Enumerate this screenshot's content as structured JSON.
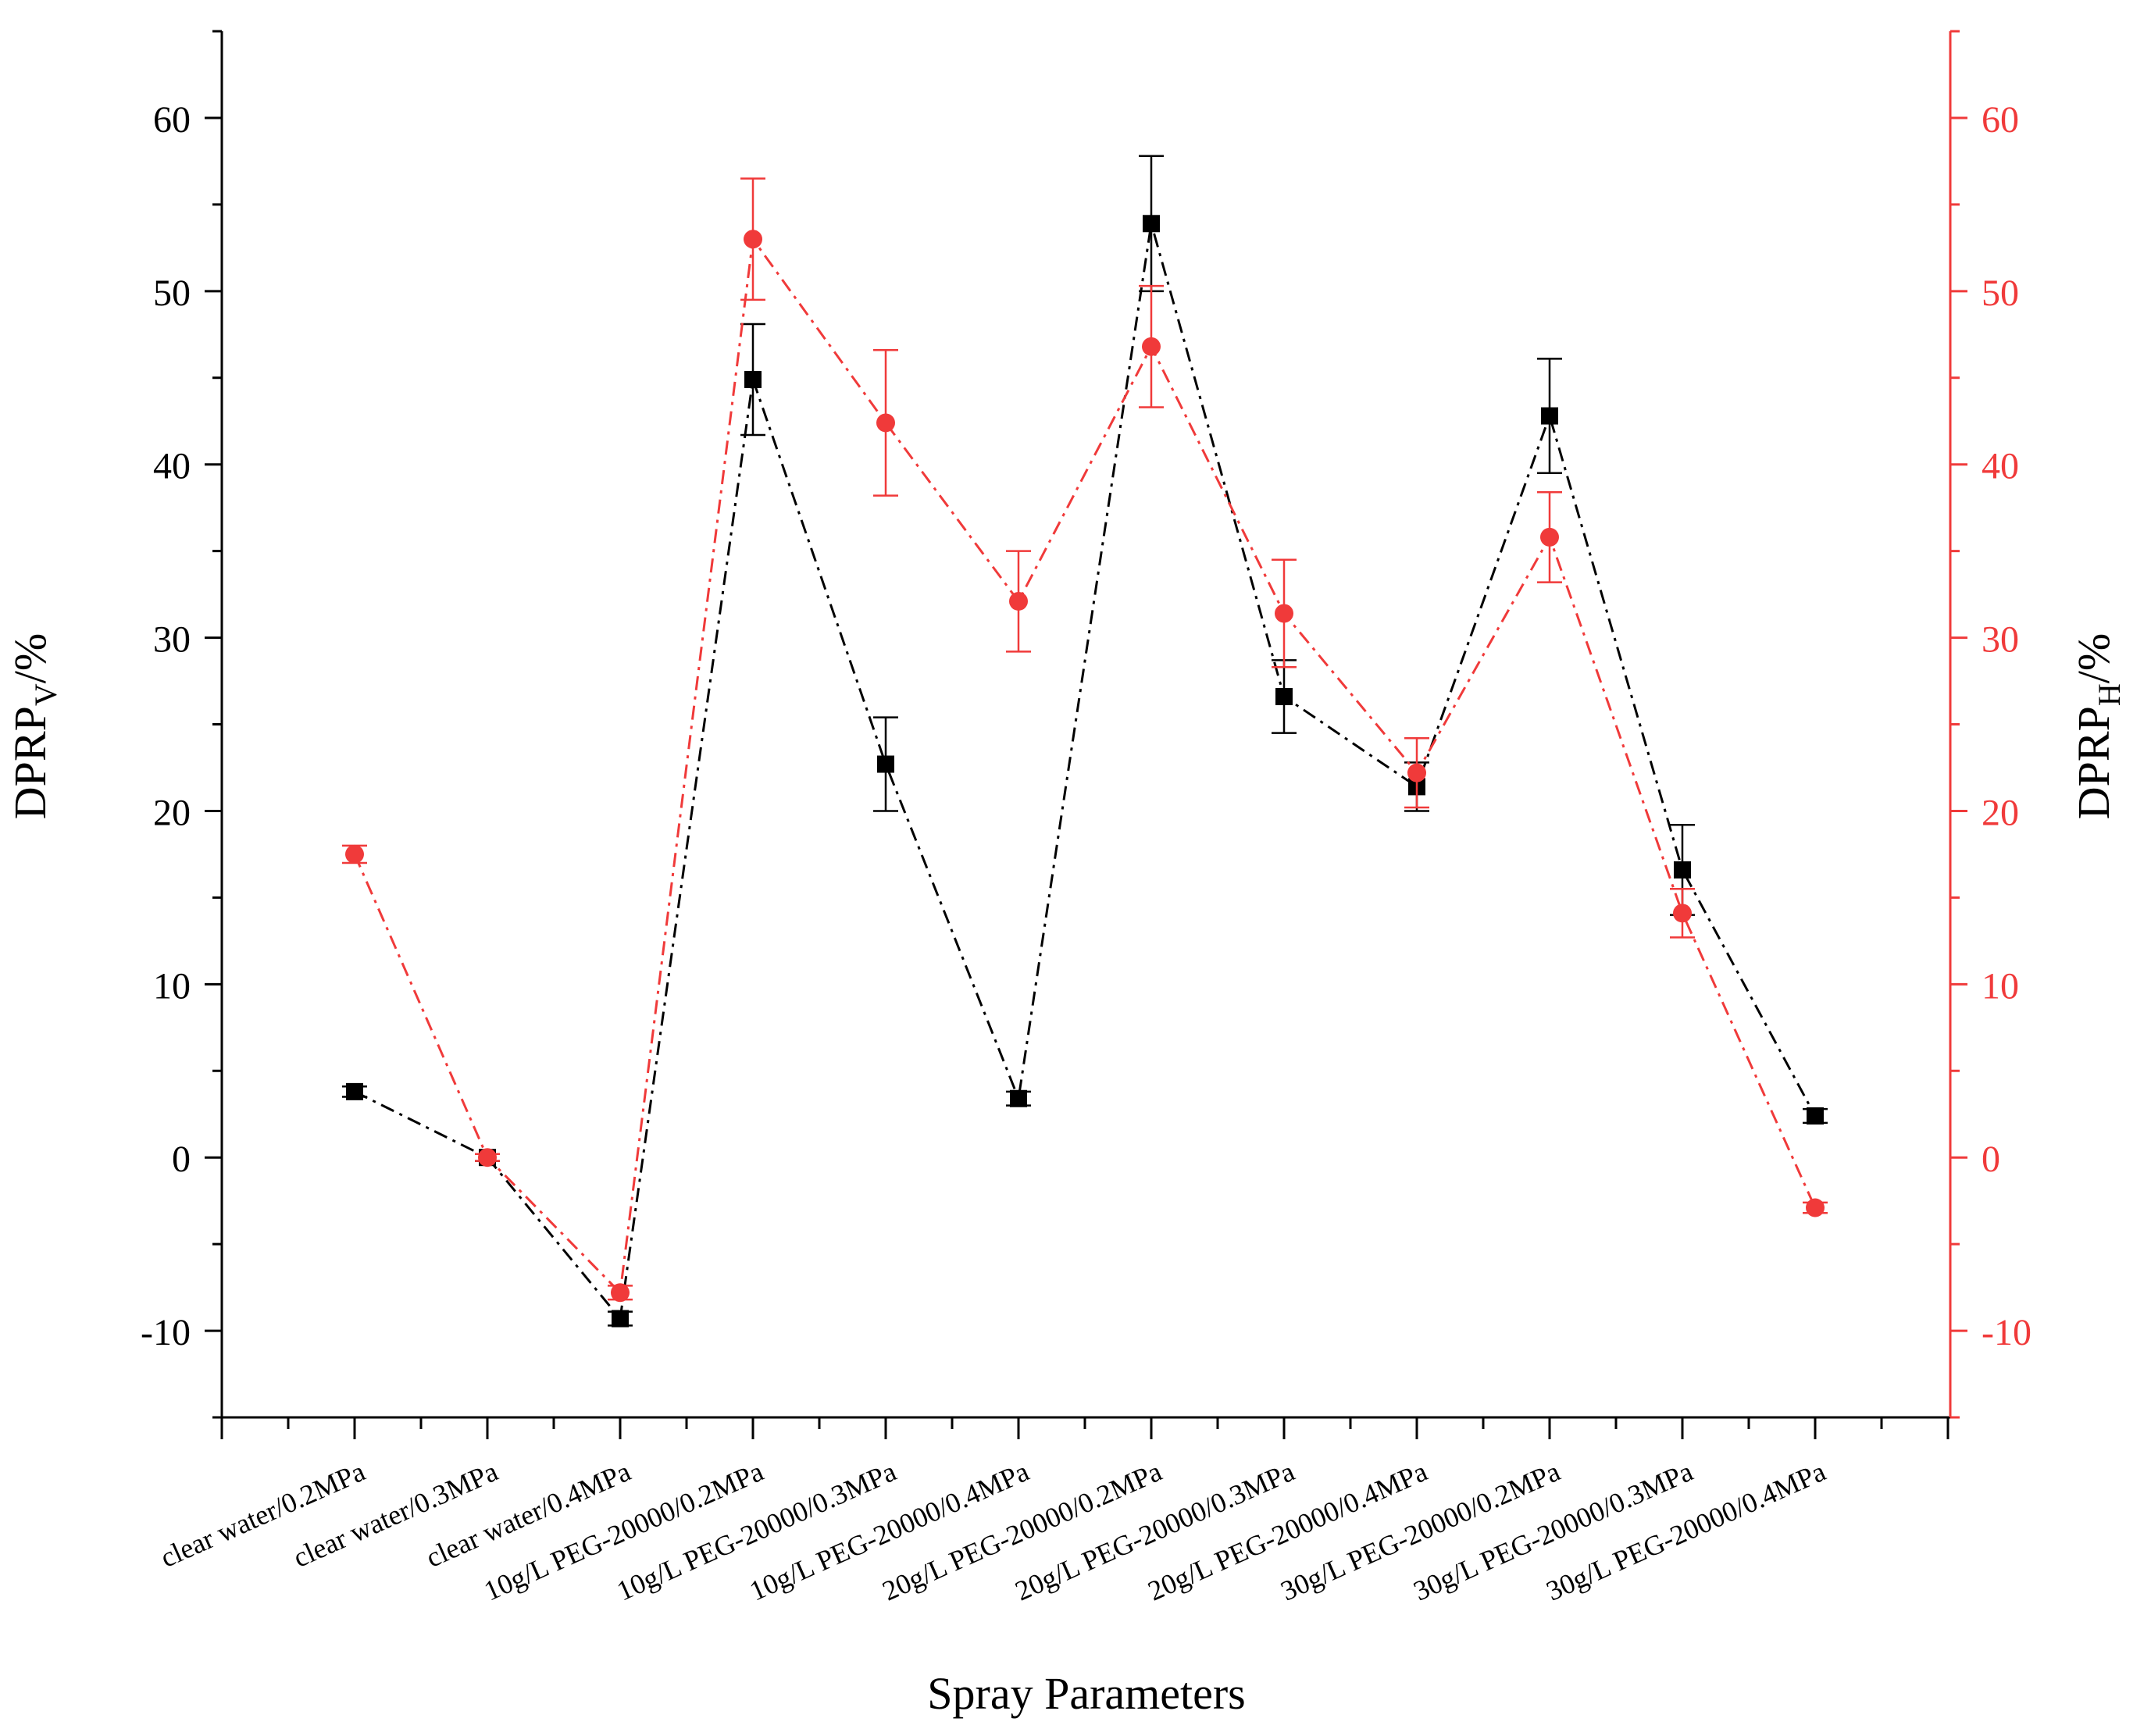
{
  "chart_data": {
    "type": "line",
    "xlabel": "Spray Parameters",
    "ylabel_left": {
      "main": "DPRP",
      "sub": "V",
      "suffix": "/%"
    },
    "ylabel_right": {
      "main": "DPRP",
      "sub": "H",
      "suffix": "/%"
    },
    "categories": [
      "clear water/0.2MPa",
      "clear water/0.3MPa",
      "clear water/0.4MPa",
      "10g/L PEG-20000/0.2MPa",
      "10g/L PEG-20000/0.3MPa",
      "10g/L PEG-20000/0.4MPa",
      "20g/L PEG-20000/0.2MPa",
      "20g/L PEG-20000/0.3MPa",
      "20g/L PEG-20000/0.4MPa",
      "30g/L PEG-20000/0.2MPa",
      "30g/L PEG-20000/0.3MPa",
      "30g/L PEG-20000/0.4MPa"
    ],
    "ylim": [
      -15,
      65
    ],
    "yticks": [
      -10,
      0,
      10,
      20,
      30,
      40,
      50,
      60
    ],
    "ytick_labels": [
      "-10",
      "0",
      "10",
      "20",
      "30",
      "40",
      "50",
      "60"
    ],
    "grid": false,
    "series": [
      {
        "axis": "left",
        "color": "#000000",
        "marker": "square",
        "values": [
          3.8,
          0.0,
          -9.3,
          44.9,
          22.7,
          3.4,
          53.9,
          26.6,
          21.4,
          42.8,
          16.6,
          2.4
        ],
        "errors": [
          0.3,
          0.2,
          0.4,
          3.2,
          2.7,
          0.4,
          3.9,
          2.1,
          1.4,
          3.3,
          2.6,
          0.4
        ]
      },
      {
        "axis": "right",
        "color": "#f03a3a",
        "marker": "circle",
        "values": [
          17.5,
          0.0,
          -7.8,
          53.0,
          42.4,
          32.1,
          46.8,
          31.4,
          22.2,
          35.8,
          14.1,
          -2.9
        ],
        "errors": [
          0.5,
          0.2,
          0.4,
          3.5,
          4.2,
          2.9,
          3.5,
          3.1,
          2.0,
          2.6,
          1.4,
          0.3
        ]
      }
    ]
  }
}
